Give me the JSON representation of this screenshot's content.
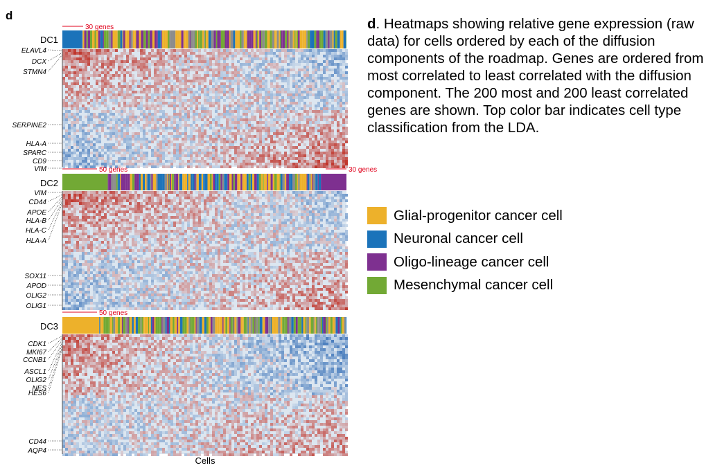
{
  "panel_letter": "d",
  "caption": {
    "letter": "d",
    "text": ". Heatmaps showing relative gene expression (raw data) for cells ordered by each of the diffusion components of the roadmap. Genes are ordered from most correlated to least correlated with the diffusion component. The 200 most and 200 least correlated genes are shown. Top color bar indicates cell type classification from the LDA."
  },
  "legend": [
    {
      "label": "Glial-progenitor cancer cell",
      "color": "#EDB12B"
    },
    {
      "label": "Neuronal cancer cell",
      "color": "#1B73BA"
    },
    {
      "label": "Oligo-lineage cancer cell",
      "color": "#7E3090"
    },
    {
      "label": "Mesenchymal cancer cell",
      "color": "#72A935"
    }
  ],
  "x_axis_label": "Cells",
  "colors": {
    "scale_bar": "#E0001B",
    "heat_low": "#3A72B8",
    "heat_mid": "#DCE6F0",
    "heat_high": "#C0352B",
    "progenitor_unclassified": "#8C8C8C"
  },
  "chart_data": {
    "type": "heatmap",
    "rows_per_panel": "200 most and 200 least correlated genes",
    "panels": [
      {
        "name": "DC1",
        "scale_bars": [
          {
            "text": "30 genes",
            "side": "left"
          }
        ],
        "genes_top": [
          "ELAVL4",
          "DCX",
          "STMN4"
        ],
        "genes_bottom": [
          "SERPINE2",
          "HLA-A",
          "SPARC",
          "CD9",
          "VIM"
        ],
        "color_bar": [
          {
            "type": "Neuronal cancer cell",
            "fraction": 0.07
          },
          {
            "type": "mixed",
            "fraction": 0.93,
            "composition": [
              "Glial-progenitor cancer cell",
              "Oligo-lineage cancer cell",
              "Mesenchymal cancer cell",
              "Neuronal cancer cell"
            ]
          },
          {
            "type": "Mesenchymal cancer cell",
            "fraction": 0.0
          }
        ]
      },
      {
        "name": "DC2",
        "scale_bars": [
          {
            "text": "50 genes",
            "side": "left"
          },
          {
            "text": "30 genes",
            "side": "right"
          }
        ],
        "genes_top": [
          "VIM",
          "CD44",
          "APOE",
          "HLA-B",
          "HLA-C",
          "HLA-A"
        ],
        "genes_bottom": [
          "SOX11",
          "APOD",
          "OLIG2",
          "OLIG1"
        ],
        "color_bar": [
          {
            "type": "Mesenchymal cancer cell",
            "fraction": 0.16
          },
          {
            "type": "mixed",
            "fraction": 0.75
          },
          {
            "type": "Oligo-lineage cancer cell",
            "fraction": 0.09
          }
        ]
      },
      {
        "name": "DC3",
        "scale_bars": [
          {
            "text": "50 genes",
            "side": "left"
          }
        ],
        "genes_top": [
          "CDK1",
          "MKI67",
          "CCNB1",
          "ASCL1",
          "OLIG2",
          "NES",
          "HES6"
        ],
        "genes_bottom": [
          "CD44",
          "AQP4"
        ],
        "color_bar": [
          {
            "type": "Glial-progenitor cancer cell",
            "fraction": 0.13
          },
          {
            "type": "mixed",
            "fraction": 0.87
          }
        ]
      }
    ]
  }
}
